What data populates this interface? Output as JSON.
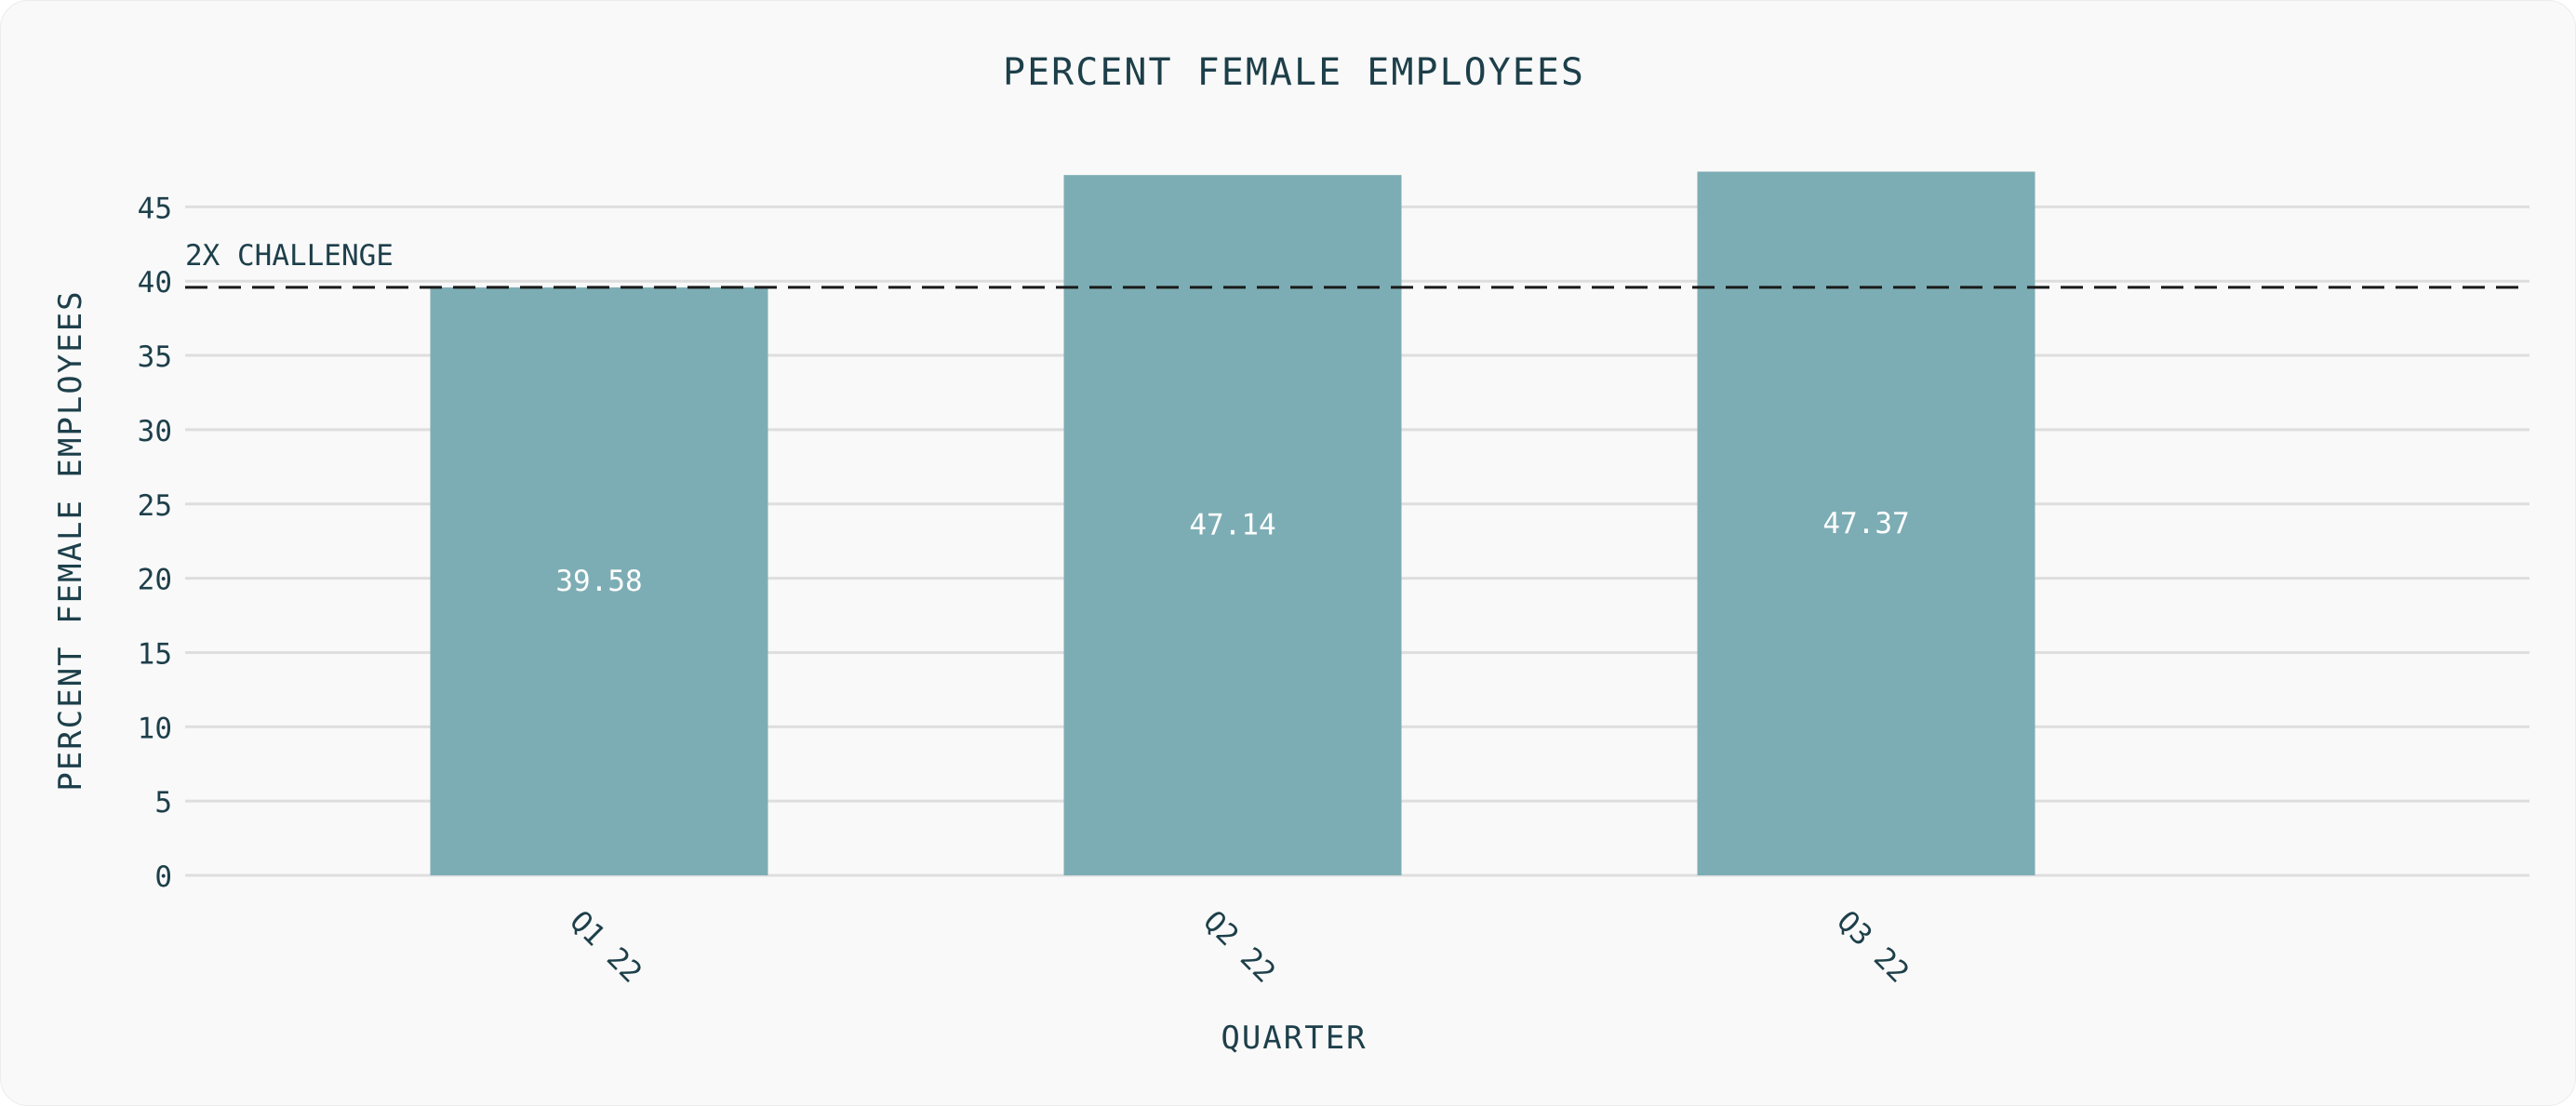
{
  "chart_data": {
    "type": "bar",
    "title": "PERCENT FEMALE EMPLOYEES",
    "xlabel": "QUARTER",
    "ylabel": "PERCENT FEMALE EMPLOYEES",
    "categories": [
      "Q1 22",
      "Q2 22",
      "Q3 22"
    ],
    "values": [
      39.58,
      47.14,
      47.37
    ],
    "value_labels": [
      "39.58",
      "47.14",
      "47.37"
    ],
    "ylim": [
      0,
      48
    ],
    "yticks": [
      "0",
      "5",
      "10",
      "15",
      "20",
      "25",
      "30",
      "35",
      "40",
      "45"
    ],
    "ytick_values": [
      0,
      5,
      10,
      15,
      20,
      25,
      30,
      35,
      40,
      45
    ],
    "grid": "horizontal",
    "reference_line": {
      "label": "2X CHALLENGE",
      "value": 39.58,
      "style": "dashed"
    },
    "colors": {
      "bar": "#7dadb4",
      "text": "#1d3f4a",
      "bar_label": "#ffffff",
      "grid": "#dedede",
      "reference_line": "#1a1a1a",
      "background": "#f9f9f9"
    }
  }
}
